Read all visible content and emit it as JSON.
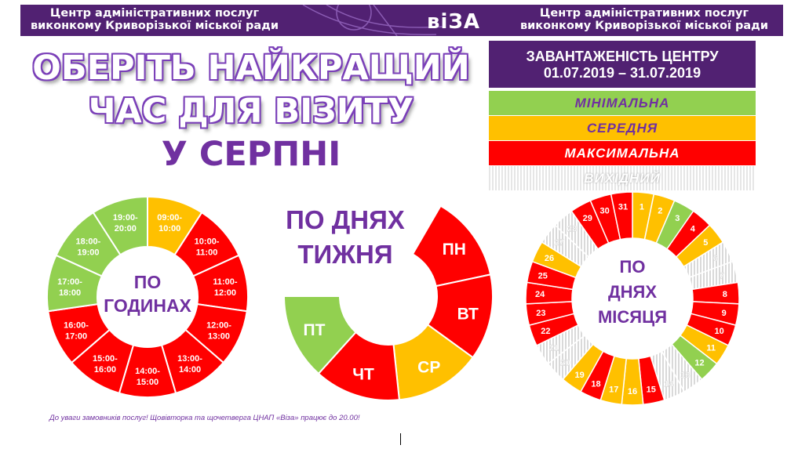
{
  "banner": {
    "org_line1": "Центр адміністративних послуг",
    "org_line2": "виконкому Криворізької міської ради",
    "logo": "віЗА"
  },
  "headline": {
    "line1": "ОБЕРІТЬ НАЙКРАЩИЙ",
    "line2": "ЧАС ДЛЯ ВІЗИТУ",
    "line3": "У СЕРПНІ"
  },
  "legend": {
    "title_line1": "ЗАВАНТАЖЕНІСТЬ ЦЕНТРУ",
    "title_line2": "01.07.2019 – 31.07.2019",
    "minimal": "МІНІМАЛЬНА",
    "medium": "СЕРЕДНЯ",
    "maximal": "МАКСИМАЛЬНА",
    "dayoff": "ВИХІДНИЙ"
  },
  "colors": {
    "minimal": "#92d050",
    "medium": "#ffc000",
    "maximal": "#ff0000",
    "dayoff": "#d9d9d9",
    "brand": "#512172",
    "accent": "#7030a0"
  },
  "hours_chart": {
    "center_line1": "ПО",
    "center_line2": "ГОДИНАХ",
    "slots": [
      {
        "label1": "09:00-",
        "label2": "10:00",
        "load": "medium"
      },
      {
        "label1": "10:00-",
        "label2": "11:00",
        "load": "maximal"
      },
      {
        "label1": "11:00-",
        "label2": "12:00",
        "load": "maximal"
      },
      {
        "label1": "12:00-",
        "label2": "13:00",
        "load": "maximal"
      },
      {
        "label1": "13:00-",
        "label2": "14:00",
        "load": "maximal"
      },
      {
        "label1": "14:00-",
        "label2": "15:00",
        "load": "maximal"
      },
      {
        "label1": "15:00-",
        "label2": "16:00",
        "load": "maximal"
      },
      {
        "label1": "16:00-",
        "label2": "17:00",
        "load": "maximal"
      },
      {
        "label1": "17:00-",
        "label2": "18:00",
        "load": "minimal"
      },
      {
        "label1": "18:00-",
        "label2": "19:00",
        "load": "minimal"
      },
      {
        "label1": "19:00-",
        "label2": "20:00",
        "load": "minimal"
      }
    ]
  },
  "weekday_chart": {
    "title_line1": "ПО ДНЯХ",
    "title_line2": "ТИЖНЯ",
    "days": [
      {
        "label": "ПН",
        "load": "maximal"
      },
      {
        "label": "ВТ",
        "load": "maximal"
      },
      {
        "label": "СР",
        "load": "medium"
      },
      {
        "label": "ЧТ",
        "load": "maximal"
      },
      {
        "label": "ПТ",
        "load": "minimal"
      }
    ]
  },
  "month_chart": {
    "center_line1": "ПО",
    "center_line2": "ДНЯХ",
    "center_line3": "МІСЯЦЯ",
    "days": [
      {
        "day": "1",
        "load": "medium"
      },
      {
        "day": "2",
        "load": "medium"
      },
      {
        "day": "3",
        "load": "minimal"
      },
      {
        "day": "4",
        "load": "maximal"
      },
      {
        "day": "5",
        "load": "medium"
      },
      {
        "day": "6",
        "load": "dayoff"
      },
      {
        "day": "7",
        "load": "dayoff"
      },
      {
        "day": "8",
        "load": "maximal"
      },
      {
        "day": "9",
        "load": "maximal"
      },
      {
        "day": "10",
        "load": "maximal"
      },
      {
        "day": "11",
        "load": "medium"
      },
      {
        "day": "12",
        "load": "minimal"
      },
      {
        "day": "13",
        "load": "dayoff"
      },
      {
        "day": "14",
        "load": "dayoff"
      },
      {
        "day": "15",
        "load": "maximal"
      },
      {
        "day": "16",
        "load": "medium"
      },
      {
        "day": "17",
        "load": "medium"
      },
      {
        "day": "18",
        "load": "maximal"
      },
      {
        "day": "19",
        "load": "medium"
      },
      {
        "day": "20",
        "load": "dayoff"
      },
      {
        "day": "21",
        "load": "dayoff"
      },
      {
        "day": "22",
        "load": "maximal"
      },
      {
        "day": "23",
        "load": "maximal"
      },
      {
        "day": "24",
        "load": "maximal"
      },
      {
        "day": "25",
        "load": "maximal"
      },
      {
        "day": "26",
        "load": "medium"
      },
      {
        "day": "27",
        "load": "dayoff"
      },
      {
        "day": "28",
        "load": "dayoff"
      },
      {
        "day": "29",
        "load": "maximal"
      },
      {
        "day": "30",
        "load": "maximal"
      },
      {
        "day": "31",
        "load": "maximal"
      }
    ]
  },
  "footer_note": "До уваги замовників послуг! Щовівторка та щочетверга ЦНАП «Віза» працює до 20.00!"
}
